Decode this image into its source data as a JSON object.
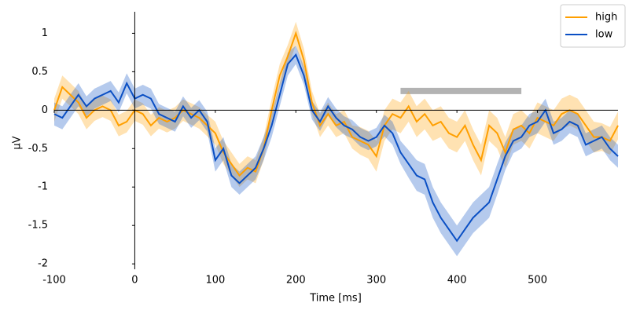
{
  "chart_data": {
    "type": "line",
    "x_label": "Time [ms]",
    "y_label": "µV",
    "x": [
      -100,
      -90,
      -80,
      -70,
      -60,
      -50,
      -40,
      -30,
      -20,
      -10,
      0,
      10,
      20,
      30,
      40,
      50,
      60,
      70,
      80,
      90,
      100,
      110,
      120,
      130,
      140,
      150,
      160,
      170,
      180,
      190,
      200,
      210,
      220,
      230,
      240,
      250,
      260,
      270,
      280,
      290,
      300,
      310,
      320,
      330,
      340,
      350,
      360,
      370,
      380,
      390,
      400,
      410,
      420,
      430,
      440,
      450,
      460,
      470,
      480,
      490,
      500,
      510,
      520,
      530,
      540,
      550,
      560,
      570,
      580,
      590,
      600
    ],
    "series": [
      {
        "name": "high",
        "color": "#ff9f00",
        "values": [
          0.0,
          0.3,
          0.2,
          0.1,
          -0.1,
          0.0,
          0.05,
          0.0,
          -0.2,
          -0.15,
          0.0,
          -0.05,
          -0.2,
          -0.1,
          -0.15,
          -0.1,
          0.0,
          -0.05,
          -0.1,
          -0.2,
          -0.3,
          -0.55,
          -0.7,
          -0.85,
          -0.75,
          -0.8,
          -0.5,
          0.0,
          0.45,
          0.7,
          1.0,
          0.65,
          0.1,
          -0.2,
          -0.05,
          -0.2,
          -0.15,
          -0.35,
          -0.4,
          -0.45,
          -0.6,
          -0.2,
          -0.05,
          -0.1,
          0.05,
          -0.15,
          -0.05,
          -0.2,
          -0.15,
          -0.3,
          -0.35,
          -0.2,
          -0.45,
          -0.65,
          -0.2,
          -0.3,
          -0.55,
          -0.25,
          -0.2,
          -0.3,
          -0.1,
          -0.15,
          -0.2,
          -0.05,
          0.0,
          -0.05,
          -0.2,
          -0.35,
          -0.35,
          -0.4,
          -0.2
        ],
        "error": [
          0.15,
          0.15,
          0.15,
          0.15,
          0.15,
          0.14,
          0.14,
          0.14,
          0.14,
          0.14,
          0.14,
          0.14,
          0.14,
          0.14,
          0.14,
          0.14,
          0.14,
          0.14,
          0.14,
          0.14,
          0.15,
          0.15,
          0.15,
          0.15,
          0.15,
          0.15,
          0.15,
          0.15,
          0.15,
          0.15,
          0.15,
          0.15,
          0.15,
          0.15,
          0.15,
          0.15,
          0.15,
          0.15,
          0.18,
          0.18,
          0.2,
          0.2,
          0.2,
          0.2,
          0.2,
          0.2,
          0.2,
          0.2,
          0.2,
          0.2,
          0.2,
          0.2,
          0.2,
          0.2,
          0.2,
          0.2,
          0.2,
          0.2,
          0.2,
          0.2,
          0.2,
          0.2,
          0.2,
          0.2,
          0.2,
          0.2,
          0.2,
          0.2,
          0.18,
          0.18,
          0.18
        ]
      },
      {
        "name": "low",
        "color": "#0a4fc4",
        "values": [
          -0.05,
          -0.1,
          0.05,
          0.2,
          0.05,
          0.15,
          0.2,
          0.25,
          0.1,
          0.35,
          0.15,
          0.2,
          0.15,
          -0.05,
          -0.1,
          -0.15,
          0.05,
          -0.1,
          0.0,
          -0.15,
          -0.65,
          -0.5,
          -0.85,
          -0.95,
          -0.85,
          -0.75,
          -0.5,
          -0.2,
          0.2,
          0.6,
          0.72,
          0.45,
          0.0,
          -0.15,
          0.05,
          -0.1,
          -0.2,
          -0.25,
          -0.35,
          -0.4,
          -0.35,
          -0.2,
          -0.3,
          -0.55,
          -0.7,
          -0.85,
          -0.9,
          -1.2,
          -1.4,
          -1.55,
          -1.7,
          -1.55,
          -1.4,
          -1.3,
          -1.2,
          -0.9,
          -0.6,
          -0.4,
          -0.35,
          -0.2,
          -0.15,
          0.0,
          -0.3,
          -0.25,
          -0.15,
          -0.2,
          -0.45,
          -0.4,
          -0.35,
          -0.5,
          -0.6
        ],
        "error": [
          0.15,
          0.15,
          0.15,
          0.15,
          0.13,
          0.13,
          0.13,
          0.13,
          0.13,
          0.13,
          0.13,
          0.13,
          0.13,
          0.13,
          0.13,
          0.13,
          0.13,
          0.13,
          0.13,
          0.13,
          0.15,
          0.15,
          0.15,
          0.15,
          0.15,
          0.15,
          0.15,
          0.15,
          0.15,
          0.15,
          0.12,
          0.12,
          0.12,
          0.12,
          0.12,
          0.12,
          0.12,
          0.12,
          0.12,
          0.12,
          0.12,
          0.14,
          0.15,
          0.15,
          0.18,
          0.2,
          0.2,
          0.2,
          0.2,
          0.2,
          0.2,
          0.2,
          0.2,
          0.2,
          0.2,
          0.2,
          0.18,
          0.16,
          0.15,
          0.15,
          0.15,
          0.15,
          0.15,
          0.15,
          0.15,
          0.15,
          0.15,
          0.15,
          0.15,
          0.15,
          0.15
        ]
      }
    ],
    "significance": {
      "x": [
        330,
        480
      ],
      "y": 0.25,
      "color": "#b3b3b3"
    },
    "xlim": [
      -100,
      600
    ],
    "ylim": [
      -2.07,
      1.28
    ],
    "xticks": [
      -100,
      0,
      100,
      200,
      300,
      400,
      500
    ],
    "yticks": [
      1,
      0.5,
      0,
      -0.5,
      -1,
      -1.5,
      -2
    ],
    "legend": "upper right"
  }
}
